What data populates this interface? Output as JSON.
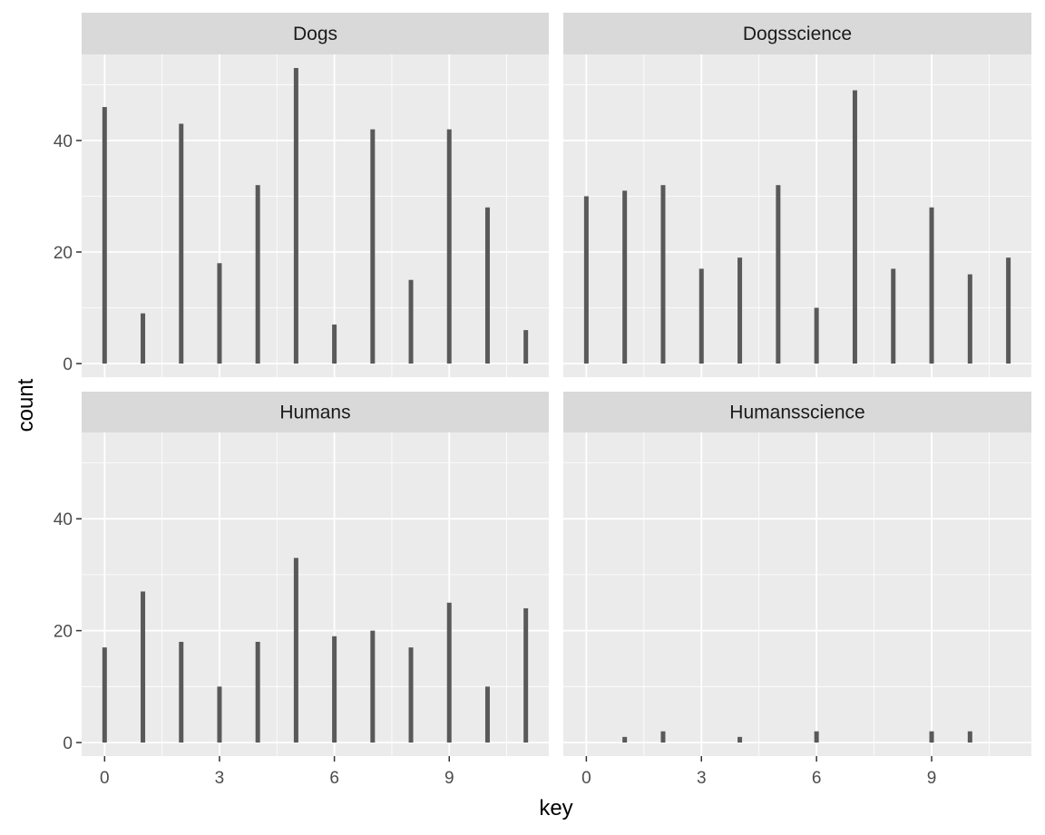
{
  "chart_data": {
    "type": "bar",
    "xlabel": "key",
    "ylabel": "count",
    "x_ticks": [
      0,
      3,
      6,
      9
    ],
    "y_ticks": [
      0,
      20,
      40
    ],
    "xlim": [
      -0.6,
      11.6
    ],
    "ylim": [
      0,
      53
    ],
    "grid": true,
    "layout": "facet-wrap 2x2",
    "colors": {
      "bar": "#595959",
      "panel": "#ebebeb",
      "strip": "#d9d9d9",
      "grid": "#ffffff"
    },
    "panels": [
      {
        "name": "Dogs",
        "x": [
          0,
          1,
          2,
          3,
          4,
          5,
          6,
          7,
          8,
          9,
          10,
          11
        ],
        "values": [
          46,
          9,
          43,
          18,
          32,
          53,
          7,
          42,
          15,
          42,
          28,
          6
        ]
      },
      {
        "name": "Dogsscience",
        "x": [
          0,
          1,
          2,
          3,
          4,
          5,
          6,
          7,
          8,
          9,
          10,
          11
        ],
        "values": [
          30,
          31,
          32,
          17,
          19,
          32,
          10,
          49,
          17,
          28,
          16,
          19
        ]
      },
      {
        "name": "Humans",
        "x": [
          0,
          1,
          2,
          3,
          4,
          5,
          6,
          7,
          8,
          9,
          10,
          11
        ],
        "values": [
          17,
          27,
          18,
          10,
          18,
          33,
          19,
          20,
          17,
          25,
          10,
          24
        ]
      },
      {
        "name": "Humansscience",
        "x": [
          1,
          2,
          4,
          6,
          9,
          10
        ],
        "values": [
          1,
          2,
          1,
          2,
          2,
          2
        ]
      }
    ]
  }
}
